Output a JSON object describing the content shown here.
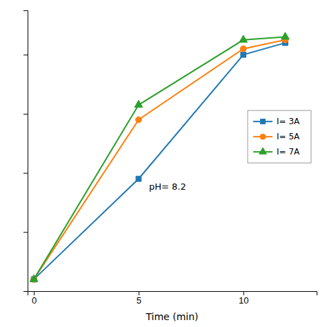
{
  "chart_data": {
    "type": "line",
    "x": [
      0,
      5,
      10,
      12
    ],
    "series": [
      {
        "name": "I= 3A",
        "marker": "square",
        "values": [
          0.04,
          0.38,
          0.8,
          0.84
        ]
      },
      {
        "name": "I= 5A",
        "marker": "circle",
        "values": [
          0.04,
          0.58,
          0.82,
          0.85
        ]
      },
      {
        "name": "I= 7A",
        "marker": "triangle",
        "values": [
          0.04,
          0.63,
          0.85,
          0.86
        ]
      }
    ],
    "xlabel": "Time (min)",
    "annotation": "pH= 8.2",
    "xlim": [
      -0.3,
      13.5
    ],
    "ylim": [
      0.0,
      0.95
    ],
    "xticks": [
      0,
      5,
      10
    ],
    "yticks": [
      0,
      0.2,
      0.4,
      0.6,
      0.8
    ],
    "tick_labels": "x",
    "grid": false,
    "legend": "right"
  }
}
